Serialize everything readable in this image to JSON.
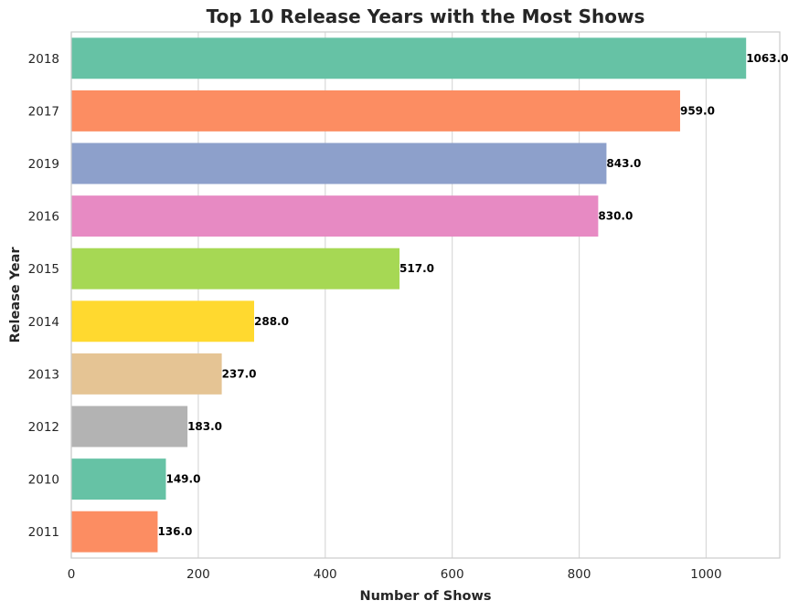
{
  "chart_data": {
    "type": "bar",
    "orientation": "horizontal",
    "title": "Top 10 Release Years with the Most Shows",
    "xlabel": "Number of Shows",
    "ylabel": "Release Year",
    "categories": [
      "2018",
      "2017",
      "2019",
      "2016",
      "2015",
      "2014",
      "2013",
      "2012",
      "2010",
      "2011"
    ],
    "values": [
      1063,
      959,
      843,
      830,
      517,
      288,
      237,
      183,
      149,
      136
    ],
    "value_labels": [
      "1063.0",
      "959.0",
      "843.0",
      "830.0",
      "517.0",
      "288.0",
      "237.0",
      "183.0",
      "149.0",
      "136.0"
    ],
    "xlim": [
      0,
      1116
    ],
    "xticks": [
      0,
      200,
      400,
      600,
      800,
      1000
    ],
    "grid": "vertical",
    "colors": [
      "#66c2a5",
      "#fc8d62",
      "#8da0cb",
      "#e78ac3",
      "#a6d854",
      "#ffd92f",
      "#e5c494",
      "#b3b3b3",
      "#66c2a5",
      "#fc8d62"
    ]
  }
}
